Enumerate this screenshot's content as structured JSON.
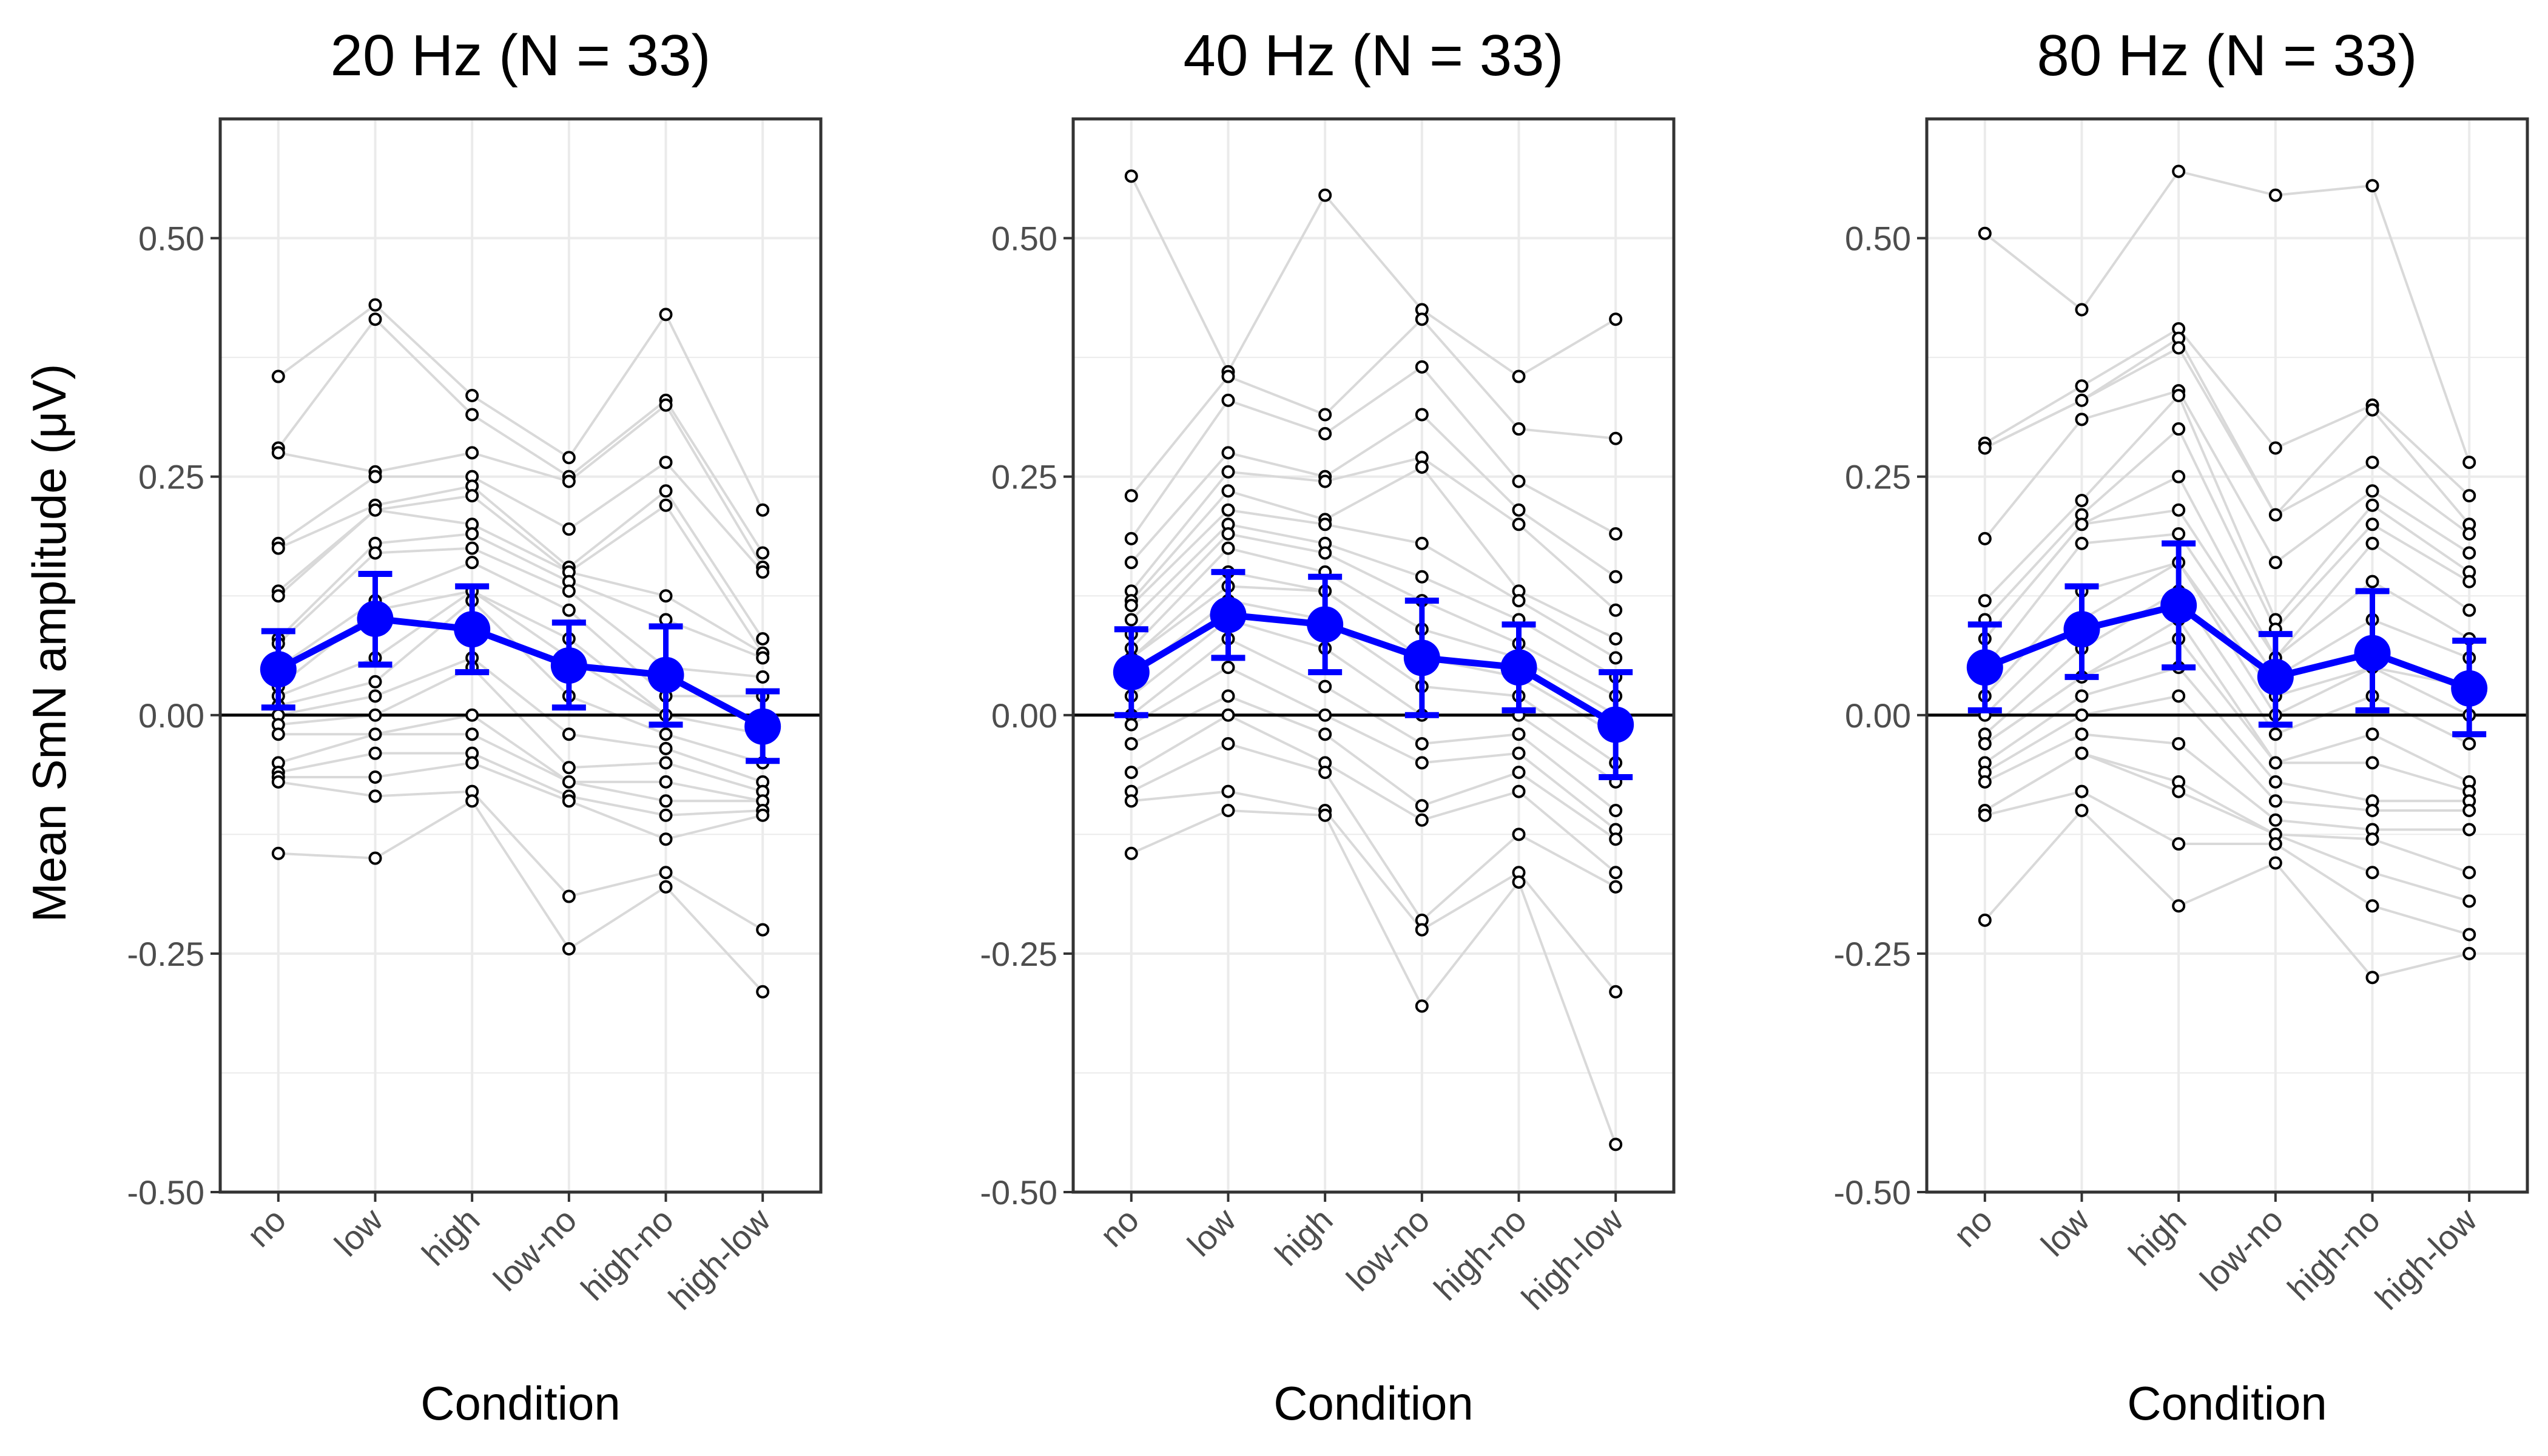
{
  "chart_data": {
    "type": "line",
    "ylabel": "Mean SmN amplitude (μV)",
    "ylim": [
      -0.5,
      0.625
    ],
    "yticks": [
      "0.50",
      "0.25",
      "0.00",
      "-0.25",
      "-0.50"
    ],
    "ytick_values": [
      0.5,
      0.25,
      0.0,
      -0.25,
      -0.5
    ],
    "grid": true,
    "reference_line_y": 0,
    "colors": {
      "mean": "#0000ff",
      "subject_line": "#d9d9d9",
      "subject_point": "#000000",
      "grid": "#ebebeb",
      "reference_line": "#000000"
    },
    "panels": [
      {
        "title": "20 Hz (N = 33)",
        "xlabel": "Condition",
        "categories": [
          "no",
          "low",
          "high",
          "low-no",
          "high-no",
          "high-low"
        ],
        "series": [
          {
            "type": "mean_with_error_bars",
            "values": [
              0.048,
              0.101,
              0.09,
              0.052,
              0.042,
              -0.012
            ],
            "error_lower": [
              0.008,
              0.053,
              0.045,
              0.008,
              -0.01,
              -0.048
            ],
            "error_upper": [
              0.088,
              0.148,
              0.135,
              0.097,
              0.093,
              0.025
            ]
          },
          {
            "type": "individual_points",
            "values": [
              [
                0.355,
                0.28,
                0.275,
                0.18,
                0.175,
                0.13,
                0.125,
                0.08,
                0.075,
                0.05,
                0.03,
                0.02,
                0.01,
                0.0,
                -0.01,
                -0.02,
                -0.05,
                -0.06,
                -0.065,
                -0.07,
                -0.145
              ],
              [
                0.43,
                0.415,
                0.255,
                0.25,
                0.22,
                0.215,
                0.18,
                0.17,
                0.12,
                0.11,
                0.06,
                0.035,
                0.02,
                0.0,
                -0.02,
                -0.04,
                -0.065,
                -0.085,
                -0.15
              ],
              [
                0.335,
                0.315,
                0.275,
                0.25,
                0.24,
                0.23,
                0.2,
                0.19,
                0.175,
                0.16,
                0.13,
                0.12,
                0.06,
                0.05,
                0.0,
                -0.02,
                -0.04,
                -0.05,
                -0.08,
                -0.09
              ],
              [
                0.27,
                0.25,
                0.245,
                0.195,
                0.155,
                0.15,
                0.14,
                0.13,
                0.11,
                0.08,
                0.06,
                0.02,
                -0.02,
                -0.055,
                -0.07,
                -0.085,
                -0.09,
                -0.19,
                -0.245
              ],
              [
                0.42,
                0.33,
                0.325,
                0.265,
                0.235,
                0.22,
                0.125,
                0.1,
                0.05,
                0.02,
                0.0,
                -0.02,
                -0.035,
                -0.05,
                -0.07,
                -0.09,
                -0.105,
                -0.13,
                -0.165,
                -0.18
              ],
              [
                0.215,
                0.17,
                0.155,
                0.15,
                0.08,
                0.065,
                0.06,
                0.04,
                0.02,
                0.0,
                -0.02,
                -0.05,
                -0.07,
                -0.08,
                -0.09,
                -0.1,
                -0.105,
                -0.225,
                -0.29
              ]
            ]
          }
        ]
      },
      {
        "title": "40 Hz (N = 33)",
        "xlabel": "Condition",
        "categories": [
          "no",
          "low",
          "high",
          "low-no",
          "high-no",
          "high-low"
        ],
        "series": [
          {
            "type": "mean_with_error_bars",
            "values": [
              0.045,
              0.105,
              0.095,
              0.06,
              0.05,
              -0.01
            ],
            "error_lower": [
              0.0,
              0.06,
              0.045,
              0.0,
              0.005,
              -0.065
            ],
            "error_upper": [
              0.09,
              0.15,
              0.145,
              0.12,
              0.095,
              0.045
            ]
          },
          {
            "type": "individual_points",
            "values": [
              [
                0.565,
                0.23,
                0.185,
                0.16,
                0.13,
                0.12,
                0.115,
                0.1,
                0.085,
                0.07,
                0.06,
                0.04,
                0.02,
                0.0,
                -0.01,
                -0.03,
                -0.06,
                -0.08,
                -0.09,
                -0.145
              ],
              [
                0.36,
                0.355,
                0.33,
                0.275,
                0.255,
                0.235,
                0.215,
                0.2,
                0.19,
                0.175,
                0.15,
                0.135,
                0.12,
                0.1,
                0.08,
                0.05,
                0.02,
                0.0,
                -0.03,
                -0.08,
                -0.1
              ],
              [
                0.545,
                0.315,
                0.295,
                0.25,
                0.245,
                0.205,
                0.2,
                0.18,
                0.17,
                0.15,
                0.13,
                0.1,
                0.07,
                0.03,
                0.0,
                -0.02,
                -0.05,
                -0.06,
                -0.1,
                -0.105
              ],
              [
                0.425,
                0.415,
                0.365,
                0.315,
                0.27,
                0.26,
                0.18,
                0.145,
                0.12,
                0.09,
                0.06,
                0.03,
                0.0,
                -0.03,
                -0.05,
                -0.095,
                -0.11,
                -0.215,
                -0.225,
                -0.305
              ],
              [
                0.355,
                0.3,
                0.245,
                0.215,
                0.2,
                0.13,
                0.12,
                0.1,
                0.075,
                0.06,
                0.04,
                0.02,
                0.0,
                -0.02,
                -0.04,
                -0.06,
                -0.08,
                -0.125,
                -0.165,
                -0.175
              ],
              [
                0.415,
                0.29,
                0.19,
                0.145,
                0.11,
                0.08,
                0.06,
                0.04,
                0.02,
                0.0,
                -0.02,
                -0.05,
                -0.07,
                -0.1,
                -0.12,
                -0.13,
                -0.165,
                -0.18,
                -0.29,
                -0.45
              ]
            ]
          }
        ]
      },
      {
        "title": "80 Hz (N = 33)",
        "xlabel": "Condition",
        "categories": [
          "no",
          "low",
          "high",
          "low-no",
          "high-no",
          "high-low"
        ],
        "series": [
          {
            "type": "mean_with_error_bars",
            "values": [
              0.05,
              0.09,
              0.115,
              0.04,
              0.065,
              0.028
            ],
            "error_lower": [
              0.005,
              0.04,
              0.05,
              -0.01,
              0.005,
              -0.02
            ],
            "error_upper": [
              0.095,
              0.135,
              0.18,
              0.085,
              0.13,
              0.078
            ]
          },
          {
            "type": "individual_points",
            "values": [
              [
                0.505,
                0.285,
                0.28,
                0.185,
                0.12,
                0.1,
                0.08,
                0.05,
                0.02,
                0.0,
                -0.02,
                -0.03,
                -0.05,
                -0.06,
                -0.07,
                -0.1,
                -0.105,
                -0.215
              ],
              [
                0.425,
                0.345,
                0.33,
                0.31,
                0.225,
                0.21,
                0.2,
                0.18,
                0.13,
                0.1,
                0.07,
                0.04,
                0.02,
                0.0,
                -0.02,
                -0.04,
                -0.08,
                -0.1
              ],
              [
                0.57,
                0.405,
                0.395,
                0.385,
                0.34,
                0.335,
                0.3,
                0.25,
                0.215,
                0.19,
                0.16,
                0.13,
                0.1,
                0.08,
                0.05,
                0.02,
                -0.03,
                -0.07,
                -0.08,
                -0.135,
                -0.2
              ],
              [
                0.545,
                0.28,
                0.21,
                0.16,
                0.1,
                0.09,
                0.06,
                0.04,
                0.02,
                0.0,
                -0.02,
                -0.05,
                -0.07,
                -0.09,
                -0.11,
                -0.125,
                -0.135,
                -0.155
              ],
              [
                0.555,
                0.325,
                0.32,
                0.265,
                0.235,
                0.22,
                0.2,
                0.18,
                0.14,
                0.1,
                0.05,
                0.02,
                -0.02,
                -0.05,
                -0.09,
                -0.1,
                -0.12,
                -0.13,
                -0.165,
                -0.2,
                -0.275
              ],
              [
                0.265,
                0.23,
                0.2,
                0.19,
                0.17,
                0.15,
                0.14,
                0.11,
                0.08,
                0.06,
                0.03,
                0.0,
                -0.03,
                -0.07,
                -0.08,
                -0.09,
                -0.1,
                -0.12,
                -0.165,
                -0.195,
                -0.23,
                -0.25
              ]
            ]
          }
        ]
      }
    ]
  }
}
